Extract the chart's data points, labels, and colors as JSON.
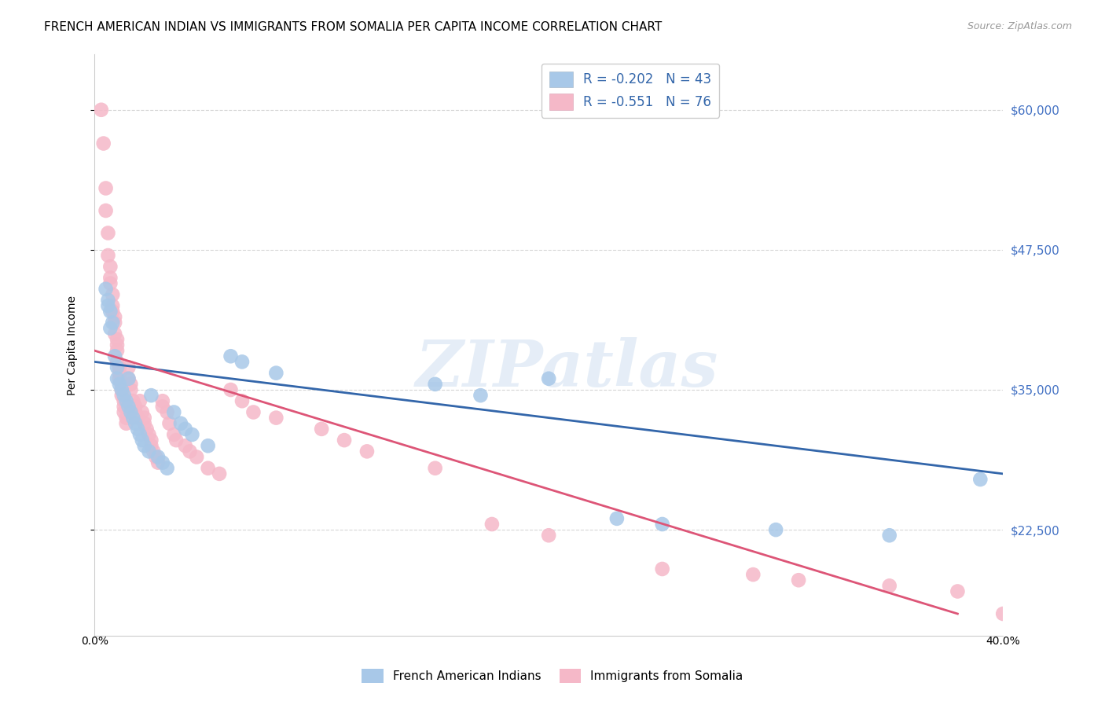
{
  "title": "FRENCH AMERICAN INDIAN VS IMMIGRANTS FROM SOMALIA PER CAPITA INCOME CORRELATION CHART",
  "source": "Source: ZipAtlas.com",
  "ylabel": "Per Capita Income",
  "yticks": [
    22500,
    35000,
    47500,
    60000
  ],
  "ytick_labels": [
    "$22,500",
    "$35,000",
    "$47,500",
    "$60,000"
  ],
  "xlim": [
    0.0,
    0.4
  ],
  "ylim": [
    13000,
    65000
  ],
  "watermark": "ZIPatlas",
  "blue_color": "#a8c8e8",
  "pink_color": "#f5b8c8",
  "blue_edge_color": "#6699cc",
  "pink_edge_color": "#e08090",
  "blue_line_color": "#3366aa",
  "pink_line_color": "#dd5577",
  "blue_scatter": [
    [
      0.005,
      44000
    ],
    [
      0.006,
      43000
    ],
    [
      0.006,
      42500
    ],
    [
      0.007,
      42000
    ],
    [
      0.007,
      40500
    ],
    [
      0.008,
      41000
    ],
    [
      0.009,
      38000
    ],
    [
      0.01,
      37000
    ],
    [
      0.01,
      36000
    ],
    [
      0.011,
      35500
    ],
    [
      0.012,
      35000
    ],
    [
      0.013,
      34500
    ],
    [
      0.014,
      34000
    ],
    [
      0.015,
      33500
    ],
    [
      0.015,
      36000
    ],
    [
      0.016,
      33000
    ],
    [
      0.017,
      32500
    ],
    [
      0.018,
      32000
    ],
    [
      0.019,
      31500
    ],
    [
      0.02,
      31000
    ],
    [
      0.021,
      30500
    ],
    [
      0.022,
      30000
    ],
    [
      0.024,
      29500
    ],
    [
      0.025,
      34500
    ],
    [
      0.028,
      29000
    ],
    [
      0.03,
      28500
    ],
    [
      0.032,
      28000
    ],
    [
      0.035,
      33000
    ],
    [
      0.038,
      32000
    ],
    [
      0.04,
      31500
    ],
    [
      0.043,
      31000
    ],
    [
      0.05,
      30000
    ],
    [
      0.06,
      38000
    ],
    [
      0.065,
      37500
    ],
    [
      0.08,
      36500
    ],
    [
      0.15,
      35500
    ],
    [
      0.17,
      34500
    ],
    [
      0.2,
      36000
    ],
    [
      0.23,
      23500
    ],
    [
      0.25,
      23000
    ],
    [
      0.3,
      22500
    ],
    [
      0.35,
      22000
    ],
    [
      0.39,
      27000
    ]
  ],
  "pink_scatter": [
    [
      0.003,
      60000
    ],
    [
      0.004,
      57000
    ],
    [
      0.005,
      53000
    ],
    [
      0.005,
      51000
    ],
    [
      0.006,
      49000
    ],
    [
      0.006,
      47000
    ],
    [
      0.007,
      46000
    ],
    [
      0.007,
      45000
    ],
    [
      0.007,
      44500
    ],
    [
      0.008,
      43500
    ],
    [
      0.008,
      42500
    ],
    [
      0.008,
      42000
    ],
    [
      0.009,
      41500
    ],
    [
      0.009,
      41000
    ],
    [
      0.009,
      40000
    ],
    [
      0.01,
      39500
    ],
    [
      0.01,
      39000
    ],
    [
      0.01,
      38500
    ],
    [
      0.01,
      37500
    ],
    [
      0.011,
      37000
    ],
    [
      0.011,
      36500
    ],
    [
      0.011,
      36000
    ],
    [
      0.012,
      35500
    ],
    [
      0.012,
      35000
    ],
    [
      0.012,
      34500
    ],
    [
      0.013,
      34000
    ],
    [
      0.013,
      33500
    ],
    [
      0.013,
      33000
    ],
    [
      0.014,
      32500
    ],
    [
      0.014,
      32000
    ],
    [
      0.015,
      37000
    ],
    [
      0.015,
      36000
    ],
    [
      0.016,
      35500
    ],
    [
      0.016,
      35000
    ],
    [
      0.017,
      34000
    ],
    [
      0.018,
      33500
    ],
    [
      0.018,
      33000
    ],
    [
      0.019,
      32500
    ],
    [
      0.02,
      34000
    ],
    [
      0.021,
      33000
    ],
    [
      0.022,
      32500
    ],
    [
      0.022,
      32000
    ],
    [
      0.023,
      31500
    ],
    [
      0.024,
      31000
    ],
    [
      0.025,
      30500
    ],
    [
      0.025,
      30000
    ],
    [
      0.026,
      29500
    ],
    [
      0.027,
      29000
    ],
    [
      0.028,
      28500
    ],
    [
      0.03,
      34000
    ],
    [
      0.03,
      33500
    ],
    [
      0.032,
      33000
    ],
    [
      0.033,
      32000
    ],
    [
      0.035,
      31000
    ],
    [
      0.036,
      30500
    ],
    [
      0.04,
      30000
    ],
    [
      0.042,
      29500
    ],
    [
      0.045,
      29000
    ],
    [
      0.05,
      28000
    ],
    [
      0.055,
      27500
    ],
    [
      0.06,
      35000
    ],
    [
      0.065,
      34000
    ],
    [
      0.07,
      33000
    ],
    [
      0.08,
      32500
    ],
    [
      0.1,
      31500
    ],
    [
      0.11,
      30500
    ],
    [
      0.12,
      29500
    ],
    [
      0.15,
      28000
    ],
    [
      0.175,
      23000
    ],
    [
      0.2,
      22000
    ],
    [
      0.25,
      19000
    ],
    [
      0.29,
      18500
    ],
    [
      0.31,
      18000
    ],
    [
      0.35,
      17500
    ],
    [
      0.38,
      17000
    ],
    [
      0.4,
      15000
    ]
  ],
  "blue_line_x": [
    0.0,
    0.4
  ],
  "blue_line_y": [
    37500,
    27500
  ],
  "pink_line_x": [
    0.0,
    0.38
  ],
  "pink_line_y": [
    38500,
    15000
  ],
  "background_color": "#ffffff",
  "grid_color": "#cccccc",
  "title_fontsize": 11,
  "tick_label_color": "#4472c4",
  "legend_r_blue": "R = -0.202",
  "legend_n_blue": "N = 43",
  "legend_r_pink": "R = -0.551",
  "legend_n_pink": "N = 76"
}
